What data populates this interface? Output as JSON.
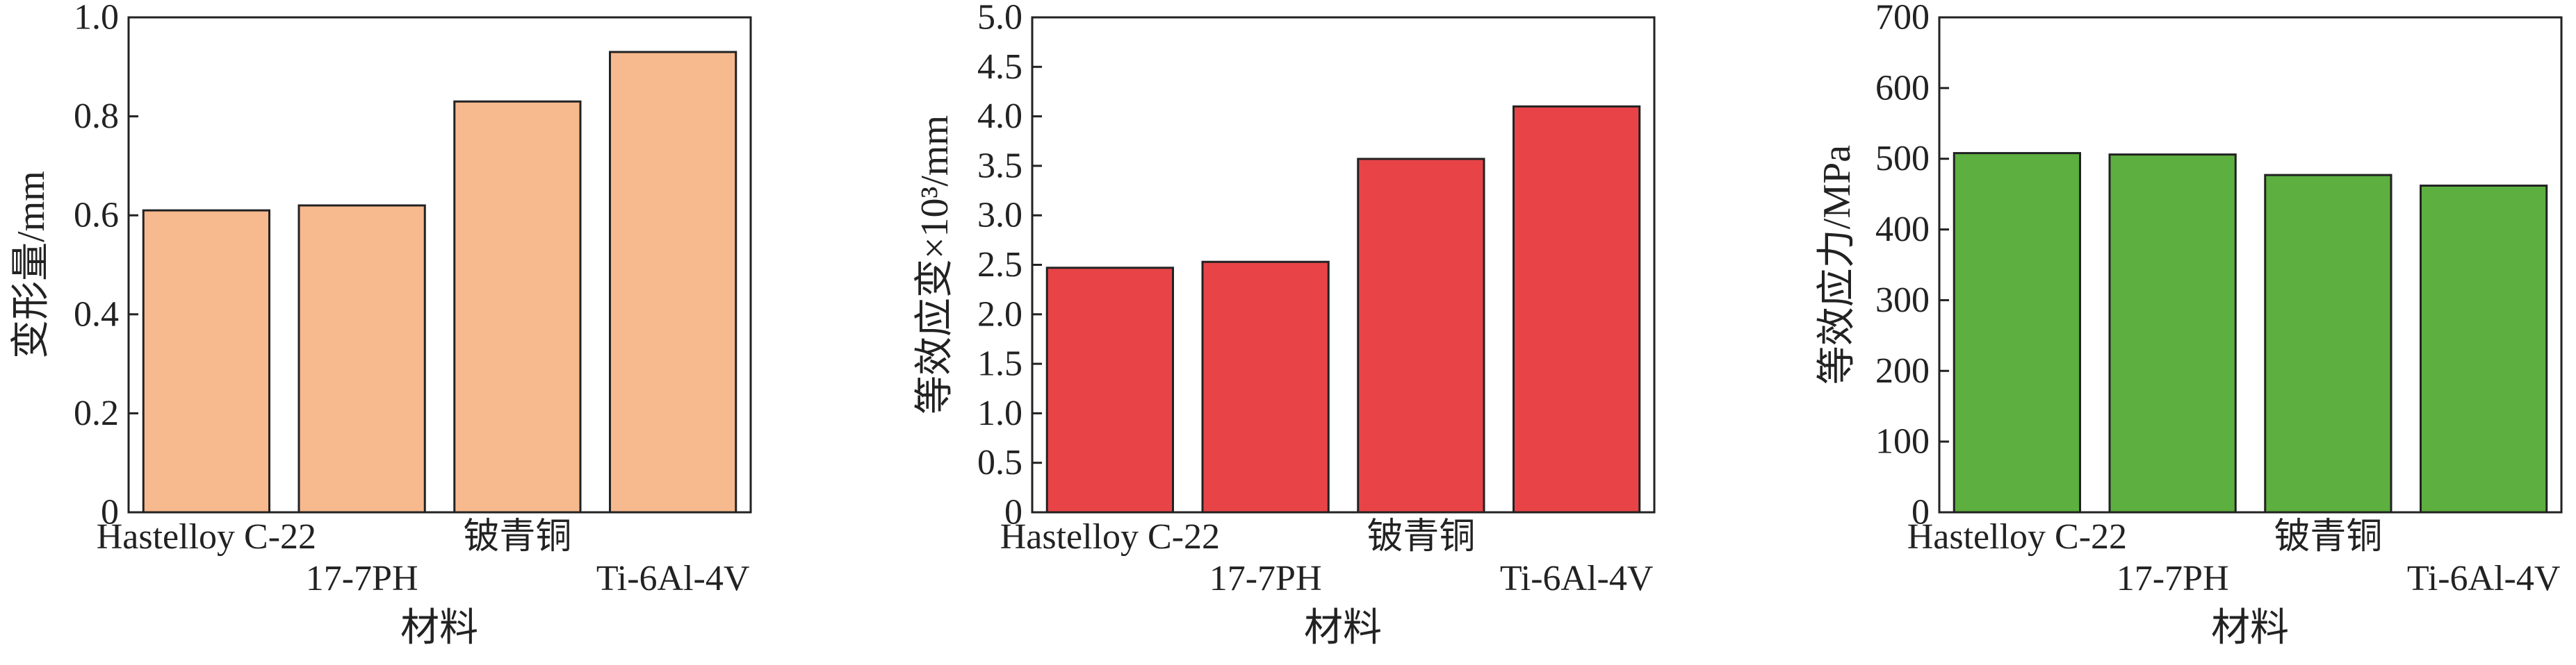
{
  "chart_data": [
    {
      "type": "bar",
      "categories": [
        "Hastelloy C-22",
        "17-7PH",
        "铍青铜",
        "Ti-6Al-4V"
      ],
      "values": [
        0.61,
        0.62,
        0.83,
        0.93
      ],
      "xlabel": "材料",
      "ylabel": "变形量/mm",
      "ylim": [
        0,
        1.0
      ],
      "yticks": [
        "0",
        "0.2",
        "0.4",
        "0.6",
        "0.8",
        "1.0"
      ],
      "color": "#f7b98e",
      "grid": false
    },
    {
      "type": "bar",
      "categories": [
        "Hastelloy C-22",
        "17-7PH",
        "铍青铜",
        "Ti-6Al-4V"
      ],
      "values": [
        2.47,
        2.53,
        3.57,
        4.1
      ],
      "xlabel": "材料",
      "ylabel": "等效应变×10³/mm",
      "ylim": [
        0,
        5.0
      ],
      "yticks": [
        "0",
        "0.5",
        "1.0",
        "1.5",
        "2.0",
        "2.5",
        "3.0",
        "3.5",
        "4.0",
        "4.5",
        "5.0"
      ],
      "color": "#e84448",
      "grid": false
    },
    {
      "type": "bar",
      "categories": [
        "Hastelloy C-22",
        "17-7PH",
        "铍青铜",
        "Ti-6Al-4V"
      ],
      "values": [
        508,
        506,
        477,
        462
      ],
      "xlabel": "材料",
      "ylabel": "等效应力/MPa",
      "ylim": [
        0,
        700
      ],
      "yticks": [
        "0",
        "100",
        "200",
        "300",
        "400",
        "500",
        "600",
        "700"
      ],
      "color": "#5daf3f",
      "grid": false
    }
  ]
}
